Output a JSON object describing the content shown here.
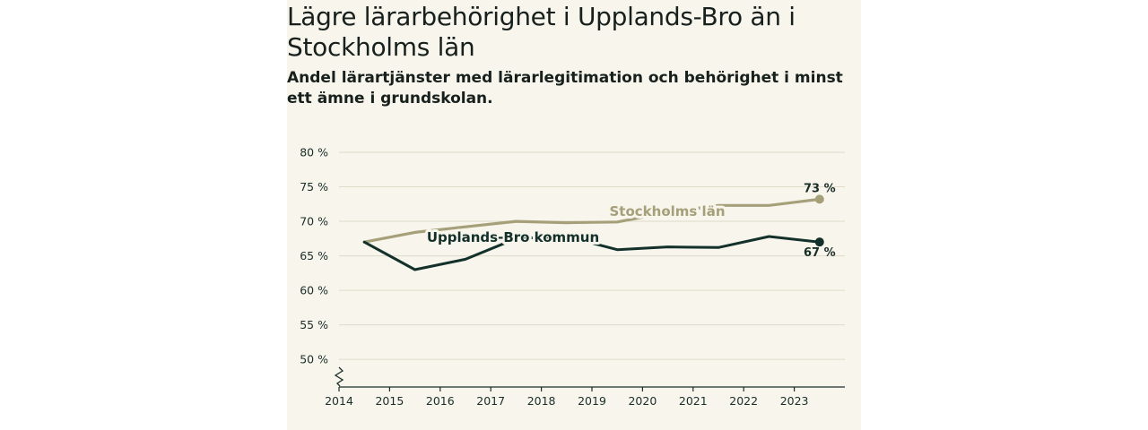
{
  "title": "Lägre lärarbehörighet i Upplands-Bro än i Stockholms län",
  "subtitle": "Andel lärartjänster med lärarlegitimation och behörighet i minst ett ämne i grundskolan.",
  "colors": {
    "background": "#f7f5ec",
    "stockholm": "#a5a07a",
    "upplands_bro": "#13302a",
    "grid": "#dedbc9",
    "axis": "#1a2e28"
  },
  "chart_data": {
    "type": "line",
    "title": "Lägre lärarbehörighet i Upplands-Bro än i Stockholms län",
    "subtitle": "Andel lärartjänster med lärarlegitimation och behörighet i minst ett ämne i grundskolan.",
    "xlabel": "",
    "ylabel": "",
    "x_tick_labels": [
      "2014",
      "2015",
      "2016",
      "2017",
      "2018",
      "2019",
      "2020",
      "2021",
      "2022",
      "2023"
    ],
    "x_domain": [
      2014,
      2024
    ],
    "y_tick_values": [
      50,
      55,
      60,
      65,
      70,
      75,
      80
    ],
    "y_tick_labels": [
      "50 %",
      "55 %",
      "60 %",
      "65 %",
      "70 %",
      "75 %",
      "80 %"
    ],
    "ylim": [
      46,
      80
    ],
    "axis_break": true,
    "grid": true,
    "series": [
      {
        "name": "Stockholms län",
        "x": [
          2014.5,
          2015.5,
          2016.5,
          2017.5,
          2018.5,
          2019.5,
          2020.5,
          2021.5,
          2022.5,
          2023.5
        ],
        "values": [
          67.0,
          68.4,
          69.2,
          70.0,
          69.8,
          69.9,
          71.3,
          72.3,
          72.3,
          73.2
        ],
        "end_label": "73 %"
      },
      {
        "name": "Upplands-Bro kommun",
        "x": [
          2014.5,
          2015.5,
          2016.5,
          2017.5,
          2018.5,
          2019.5,
          2020.5,
          2021.5,
          2022.5,
          2023.5
        ],
        "values": [
          67.0,
          63.0,
          64.5,
          67.5,
          67.8,
          65.9,
          66.3,
          66.2,
          67.8,
          67.0
        ],
        "end_label": "67 %"
      }
    ]
  }
}
